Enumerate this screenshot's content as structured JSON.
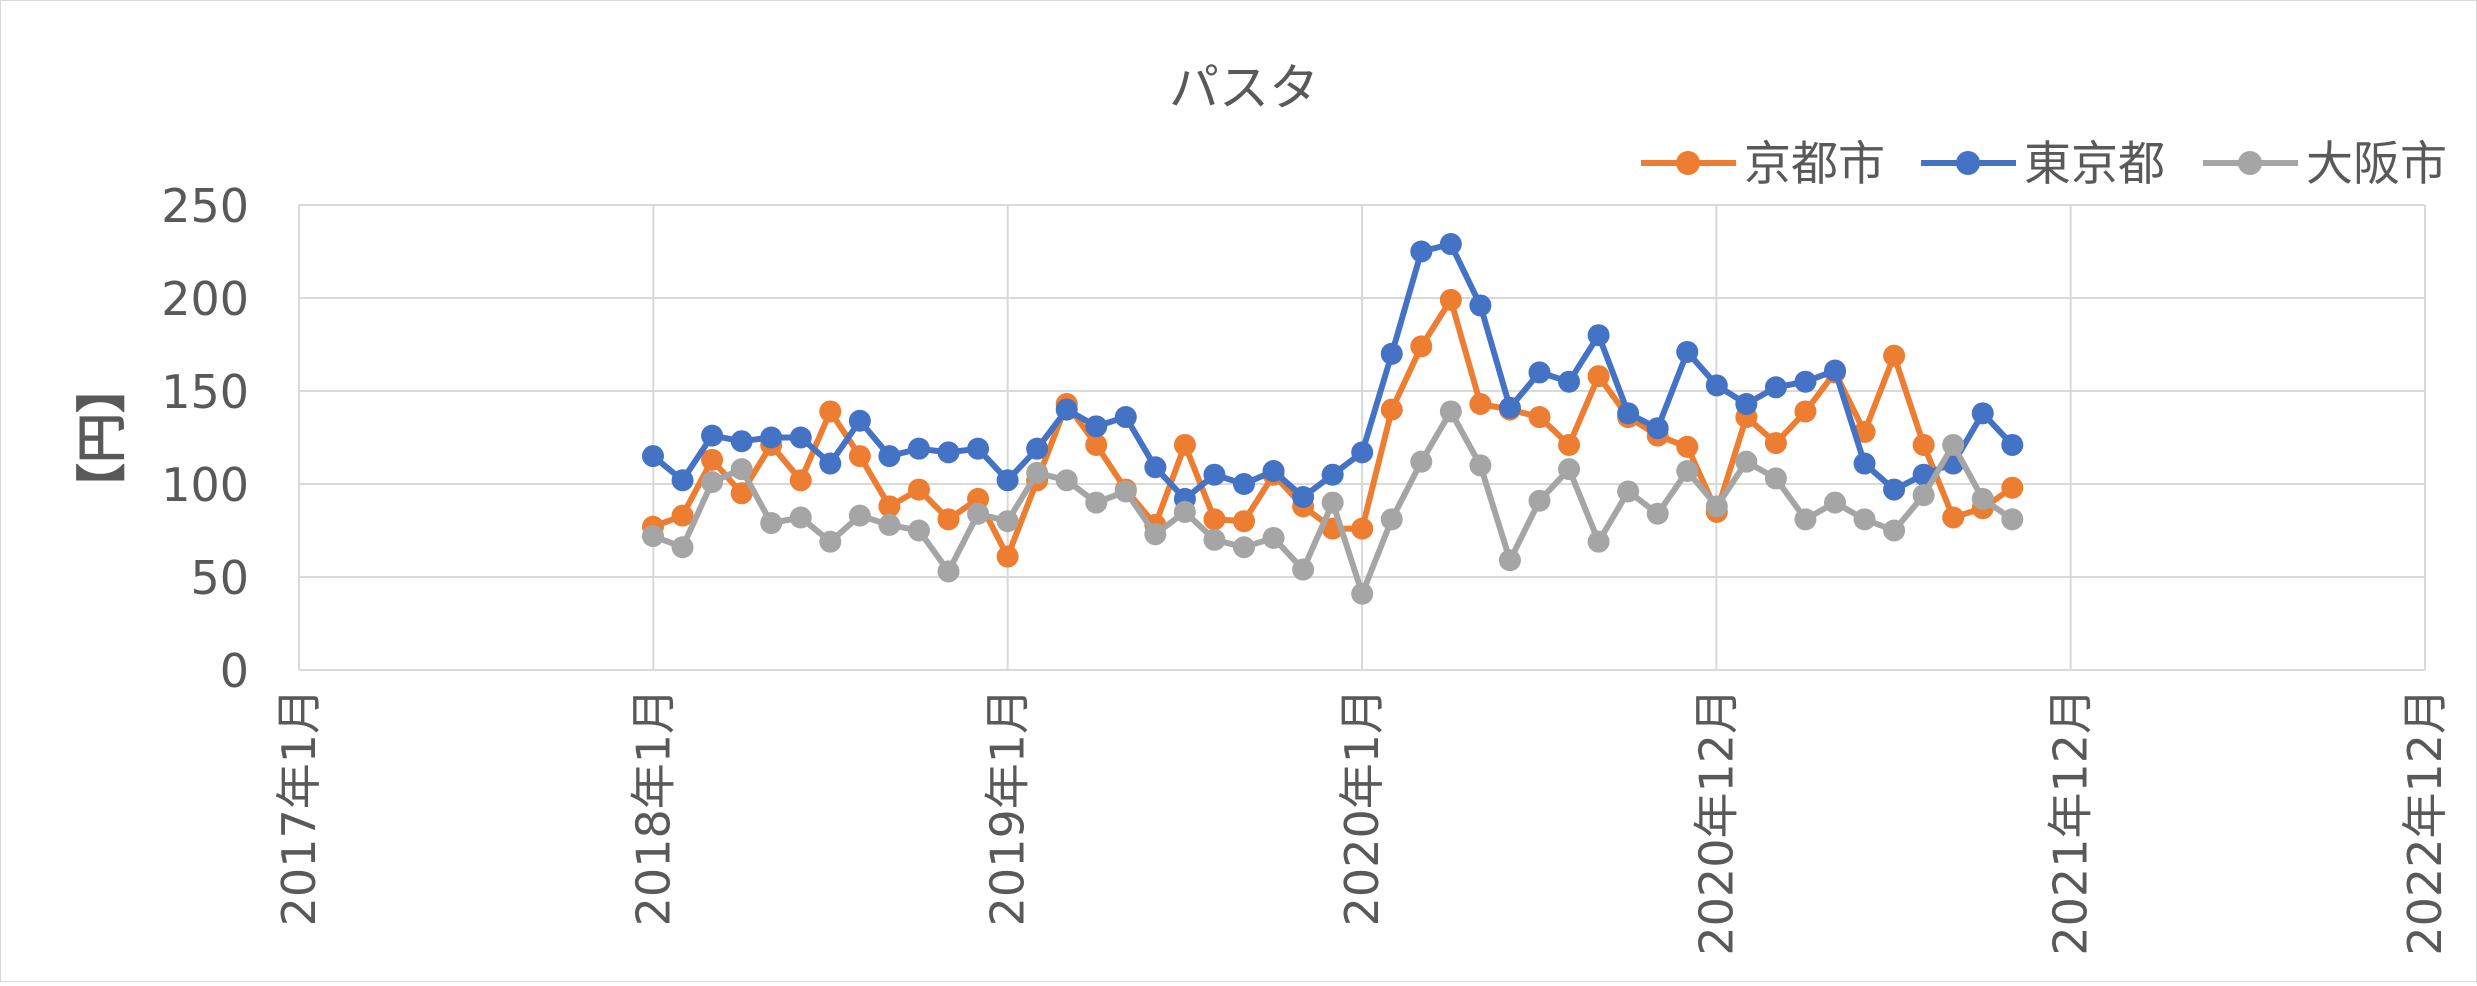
{
  "chart_data": {
    "type": "line",
    "title": "パスタ",
    "ylabel": "【円】",
    "xlabel": "",
    "ylim": [
      0,
      250
    ],
    "yticks": [
      0,
      50,
      100,
      150,
      200,
      250
    ],
    "x_axis_ticks": [
      "2017年1月",
      "2018年1月",
      "2019年1月",
      "2020年1月",
      "2020年12月",
      "2021年12月",
      "2022年12月"
    ],
    "grid": true,
    "legend_position": "top-right",
    "series": [
      {
        "name": "京都市",
        "color": "#ED7D31",
        "values": [
          77,
          83,
          113,
          95,
          121,
          102,
          139,
          115,
          88,
          97,
          81,
          92,
          61,
          102,
          143,
          121,
          97,
          78,
          121,
          81,
          80,
          105,
          88,
          76,
          76,
          140,
          174,
          199,
          143,
          140,
          136,
          121,
          158,
          136,
          126,
          120,
          85,
          136,
          122,
          139,
          160,
          128,
          169,
          121,
          82,
          87,
          98
        ]
      },
      {
        "name": "東京都",
        "color": "#4472C4",
        "values": [
          115,
          102,
          126,
          123,
          125,
          125,
          111,
          134,
          115,
          119,
          117,
          119,
          102,
          119,
          140,
          131,
          136,
          109,
          92,
          105,
          100,
          107,
          93,
          105,
          117,
          170,
          225,
          229,
          196,
          141,
          160,
          155,
          180,
          138,
          130,
          171,
          153,
          143,
          152,
          155,
          161,
          111,
          97,
          105,
          111,
          138,
          121
        ]
      },
      {
        "name": "大阪市",
        "color": "#A5A5A5",
        "values": [
          72,
          66,
          101,
          108,
          79,
          82,
          69,
          83,
          78,
          75,
          53,
          84,
          80,
          106,
          102,
          90,
          96,
          73,
          85,
          70,
          66,
          71,
          54,
          90,
          41,
          81,
          112,
          139,
          110,
          59,
          91,
          108,
          69,
          96,
          84,
          107,
          88,
          112,
          103,
          81,
          90,
          81,
          75,
          94,
          121,
          92,
          81
        ]
      }
    ]
  }
}
